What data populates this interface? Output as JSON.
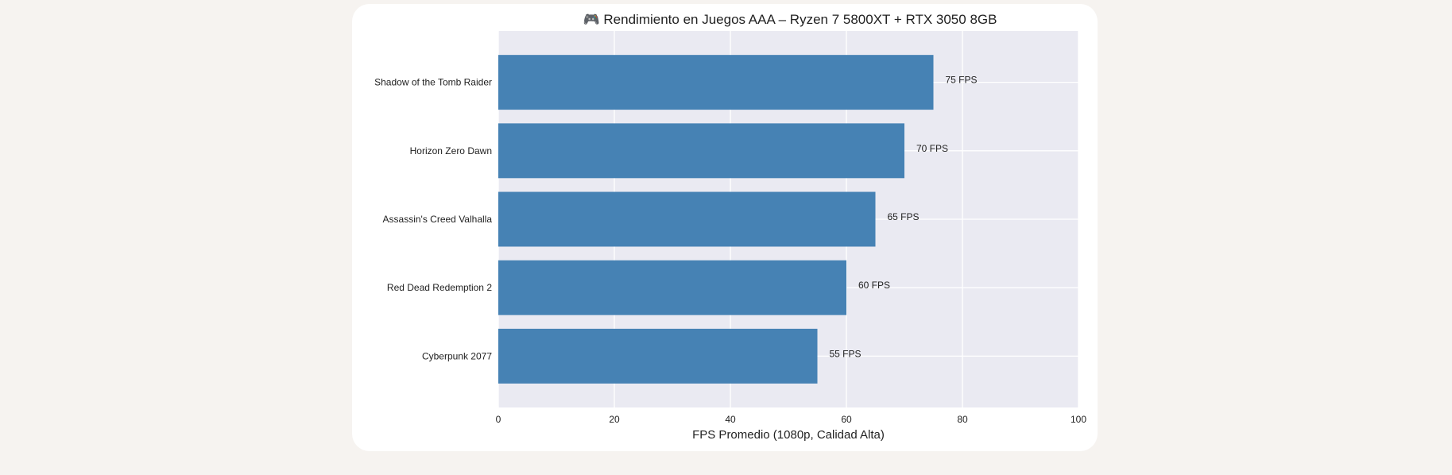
{
  "chart_data": {
    "type": "bar",
    "orientation": "horizontal",
    "title": "🎮 Rendimiento en Juegos AAA – Ryzen 7 5800XT + RTX 3050 8GB",
    "xlabel": "FPS Promedio (1080p, Calidad Alta)",
    "ylabel": "",
    "categories": [
      "Shadow of the Tomb Raider",
      "Horizon Zero Dawn",
      "Assassin's Creed Valhalla",
      "Red Dead Redemption 2",
      "Cyberpunk 2077"
    ],
    "values": [
      75,
      70,
      65,
      60,
      55
    ],
    "data_labels": [
      "75 FPS",
      "70 FPS",
      "65 FPS",
      "60 FPS",
      "55 FPS"
    ],
    "xlim": [
      0,
      100
    ],
    "xticks": [
      0,
      20,
      40,
      60,
      80,
      100
    ],
    "grid": true,
    "colors": {
      "bar": "#4682b4",
      "plot_bg": "#eaeaf2",
      "grid": "#ffffff",
      "text": "#222222"
    }
  }
}
